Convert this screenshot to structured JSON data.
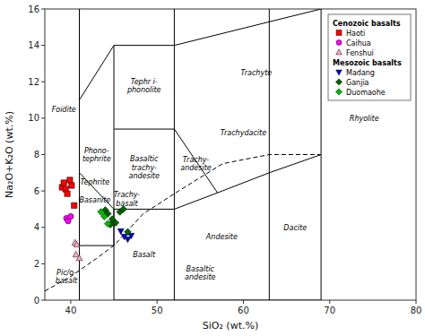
{
  "chart_data": {
    "type": "scatter",
    "x_label": "SiO₂ (wt.%)",
    "y_label": "Na₂O+K₂O (wt.%)",
    "xlim": [
      37,
      80
    ],
    "ylim": [
      0,
      16
    ],
    "xticks": [
      40,
      50,
      60,
      70,
      80
    ],
    "yticks": [
      0,
      2,
      4,
      6,
      8,
      10,
      12,
      14,
      16
    ],
    "legend": "upper-right",
    "series": [
      {
        "name": "Haoti",
        "group": "Cenozoic basalts",
        "color": "#ff0000",
        "marker": "square",
        "x": [
          39.0,
          39.2,
          39.4,
          39.6,
          39.9,
          40.1,
          40.4
        ],
        "values": [
          6.2,
          6.45,
          6.1,
          5.85,
          6.6,
          6.3,
          5.2
        ]
      },
      {
        "name": "Caihua",
        "group": "Cenozoic basalts",
        "color": "#ff00ff",
        "marker": "circle",
        "x": [
          39.5,
          39.7,
          40.0
        ],
        "values": [
          4.5,
          4.35,
          4.6
        ]
      },
      {
        "name": "Fenshui",
        "group": "Cenozoic basalts",
        "color": "#ffaacc",
        "marker": "triangle-up",
        "x": [
          40.5,
          40.7,
          40.6,
          41.0
        ],
        "values": [
          3.15,
          3.05,
          2.5,
          2.3
        ]
      },
      {
        "name": "Madang",
        "group": "Mesozoic basalts",
        "color": "#0000cc",
        "marker": "triangle-down",
        "x": [
          45.8,
          46.2,
          46.6,
          47.0
        ],
        "values": [
          3.8,
          3.5,
          3.35,
          3.55
        ]
      },
      {
        "name": "Ganjia",
        "group": "Mesozoic basalts",
        "color": "#006400",
        "marker": "diamond",
        "x": [
          44.0,
          44.3,
          44.8,
          45.2,
          45.7,
          46.1,
          46.6,
          44.6
        ],
        "values": [
          4.95,
          4.75,
          4.45,
          4.25,
          4.85,
          5.0,
          3.75,
          4.15
        ]
      },
      {
        "name": "Duomaohe",
        "group": "Mesozoic basalts",
        "color": "#00bb00",
        "marker": "diamond",
        "x": [
          43.5,
          43.9,
          44.3
        ],
        "values": [
          4.85,
          4.6,
          4.2
        ]
      }
    ],
    "segments": [
      [
        [
          41,
          0
        ],
        [
          41,
          3
        ]
      ],
      [
        [
          41,
          3
        ],
        [
          41,
          7
        ]
      ],
      [
        [
          41,
          7
        ],
        [
          41,
          16
        ]
      ],
      [
        [
          41,
          3
        ],
        [
          45,
          3
        ]
      ],
      [
        [
          41,
          7
        ],
        [
          45,
          5
        ]
      ],
      [
        [
          45,
          0
        ],
        [
          45,
          5
        ]
      ],
      [
        [
          45,
          5
        ],
        [
          45,
          9.4
        ]
      ],
      [
        [
          45,
          9.4
        ],
        [
          45,
          14
        ]
      ],
      [
        [
          45,
          3
        ],
        [
          45,
          5
        ]
      ],
      [
        [
          45,
          5
        ],
        [
          52,
          5
        ]
      ],
      [
        [
          45,
          9.4
        ],
        [
          52,
          9.4
        ]
      ],
      [
        [
          45,
          14
        ],
        [
          52,
          14
        ]
      ],
      [
        [
          52,
          5
        ],
        [
          52,
          9.4
        ]
      ],
      [
        [
          52,
          9.4
        ],
        [
          52,
          14
        ]
      ],
      [
        [
          52,
          14
        ],
        [
          52,
          16
        ]
      ],
      [
        [
          52,
          5
        ],
        [
          57,
          5.9
        ]
      ],
      [
        [
          57,
          5.9
        ],
        [
          63,
          7
        ]
      ],
      [
        [
          52,
          9.4
        ],
        [
          57,
          5.9
        ]
      ],
      [
        [
          52,
          14
        ],
        [
          69,
          16
        ]
      ],
      [
        [
          63,
          7
        ],
        [
          63,
          16
        ]
      ],
      [
        [
          63,
          7
        ],
        [
          69,
          8
        ]
      ],
      [
        [
          69,
          8
        ],
        [
          69,
          16
        ]
      ],
      [
        [
          41,
          11
        ],
        [
          45,
          14
        ]
      ],
      [
        [
          45,
          0
        ],
        [
          52,
          0
        ]
      ],
      [
        [
          52,
          0
        ],
        [
          52,
          5
        ]
      ],
      [
        [
          52,
          0
        ],
        [
          63,
          0
        ]
      ],
      [
        [
          63,
          0
        ],
        [
          63,
          7
        ]
      ],
      [
        [
          63,
          0
        ],
        [
          69,
          0
        ]
      ],
      [
        [
          69,
          0
        ],
        [
          69,
          8
        ]
      ]
    ],
    "dashed_line": {
      "line_style": "dashed",
      "x": [
        37,
        40,
        43,
        45,
        48.4,
        52.5,
        57.6,
        63,
        69
      ],
      "values": [
        0.5,
        1.3,
        2.3,
        3.0,
        4.75,
        6.0,
        7.5,
        8.0,
        8.0
      ]
    },
    "annotations": [
      {
        "text": "Foidite",
        "x": 39.2,
        "y": 10.5
      },
      {
        "text": "Tephrite",
        "x": 42.8,
        "y": 6.5
      },
      {
        "text": "Basanite",
        "x": 42.8,
        "y": 5.5
      },
      {
        "text": "Phono-\ntephrite",
        "x": 43.0,
        "y": 8.0
      },
      {
        "text": "Tephr i-\nphonolite",
        "x": 48.5,
        "y": 11.8
      },
      {
        "text": "Basaltic\ntrachy-\nandesite",
        "x": 48.5,
        "y": 7.3
      },
      {
        "text": "Trachy-\nbasalt",
        "x": 46.5,
        "y": 5.55
      },
      {
        "text": "Trachy-\nandesite",
        "x": 54.5,
        "y": 7.5
      },
      {
        "text": "Trachydacite",
        "x": 60.0,
        "y": 9.2
      },
      {
        "text": "Trachyte",
        "x": 61.5,
        "y": 12.5
      },
      {
        "text": "Andesite",
        "x": 57.5,
        "y": 3.5
      },
      {
        "text": "Basalt",
        "x": 48.5,
        "y": 2.5
      },
      {
        "text": "Basaltic\nandesite",
        "x": 55.0,
        "y": 1.5
      },
      {
        "text": "Dacite",
        "x": 66.0,
        "y": 4.0
      },
      {
        "text": "Rhyolite",
        "x": 74.0,
        "y": 10.0
      },
      {
        "text": "Pic/o-\nbasalt",
        "x": 39.5,
        "y": 1.3
      }
    ]
  }
}
